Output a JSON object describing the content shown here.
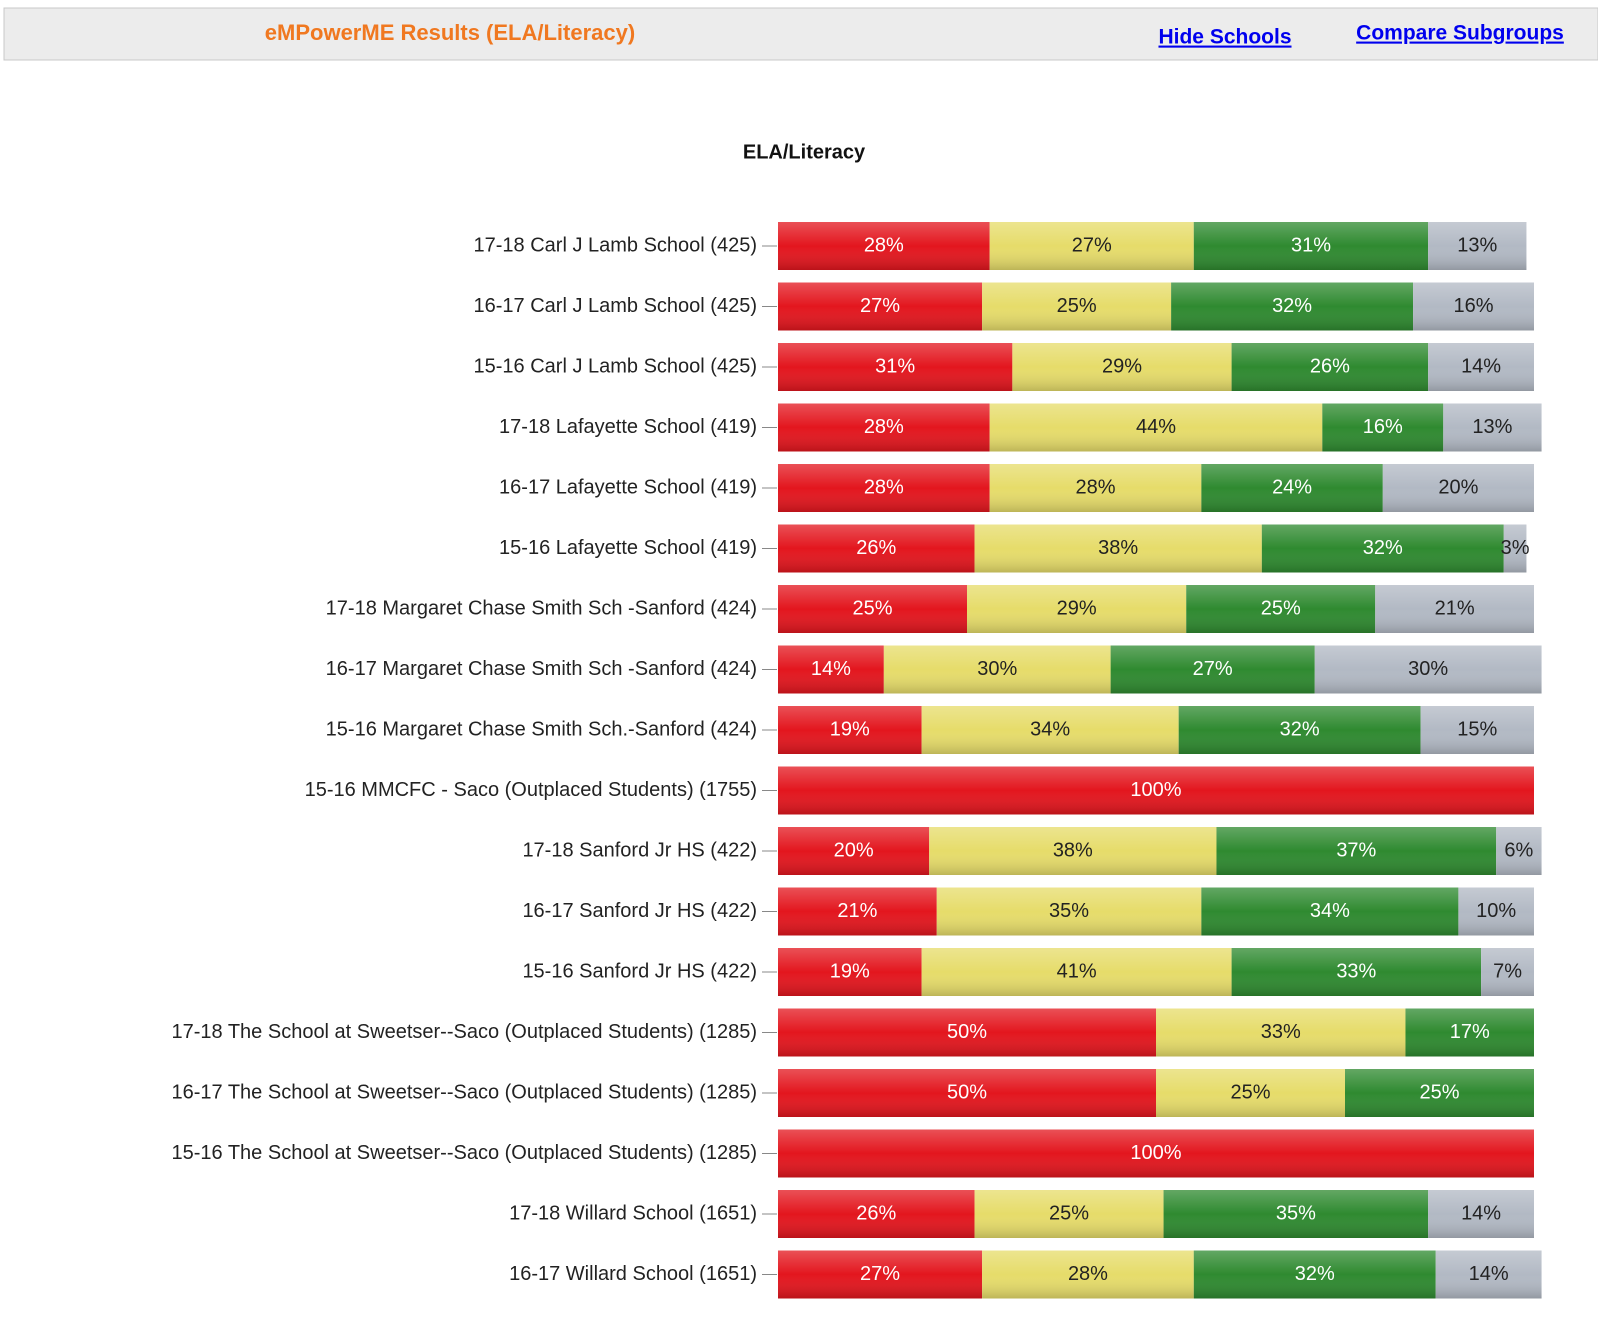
{
  "header": {
    "title": "eMPowerME Results (ELA/Literacy)",
    "links": [
      "Hide Schools",
      "Compare Subgroups"
    ]
  },
  "chart_data": {
    "type": "stacked_bar_horizontal",
    "title": "ELA/Literacy",
    "categories": [
      "17-18 Carl J Lamb School (425)",
      "16-17 Carl J Lamb School (425)",
      "15-16 Carl J Lamb School (425)",
      "17-18 Lafayette School (419)",
      "16-17 Lafayette School (419)",
      "15-16 Lafayette School (419)",
      "17-18 Margaret Chase Smith Sch -Sanford (424)",
      "16-17 Margaret Chase Smith Sch -Sanford (424)",
      "15-16 Margaret Chase Smith Sch.-Sanford (424)",
      "15-16 MMCFC - Saco (Outplaced Students) (1755)",
      "17-18 Sanford Jr HS (422)",
      "16-17 Sanford Jr HS (422)",
      "15-16 Sanford Jr HS (422)",
      "17-18 The School at Sweetser--Saco (Outplaced Students) (1285)",
      "16-17 The School at Sweetser--Saco (Outplaced Students) (1285)",
      "15-16 The School at Sweetser--Saco (Outplaced Students) (1285)",
      "17-18 Willard School (1651)",
      "16-17 Willard School (1651)"
    ],
    "xlim": [
      0,
      100
    ],
    "series": [
      {
        "color": "#e3161e",
        "text_color": "#ffffff",
        "values": [
          28,
          27,
          31,
          28,
          28,
          26,
          25,
          14,
          19,
          100,
          20,
          21,
          19,
          50,
          50,
          100,
          26,
          27
        ],
        "value_labels": [
          "28%",
          "27%",
          "31%",
          "28%",
          "28%",
          "26%",
          "25%",
          "14%",
          "19%",
          "100%",
          "20%",
          "21%",
          "19%",
          "50%",
          "50%",
          "100%",
          "26%",
          "27%"
        ]
      },
      {
        "color": "#e6dc6a",
        "text_color": "#222222",
        "values": [
          27,
          25,
          29,
          44,
          28,
          38,
          29,
          30,
          34,
          null,
          38,
          35,
          41,
          33,
          25,
          null,
          25,
          28
        ],
        "value_labels": [
          "27%",
          "25%",
          "29%",
          "44%",
          "28%",
          "38%",
          "29%",
          "30%",
          "34%",
          null,
          "38%",
          "35%",
          "41%",
          "33%",
          "25%",
          null,
          "25%",
          "28%"
        ]
      },
      {
        "color": "#2f8a30",
        "text_color": "#ffffff",
        "values": [
          31,
          32,
          26,
          16,
          24,
          32,
          25,
          27,
          32,
          null,
          37,
          34,
          33,
          17,
          25,
          null,
          35,
          32
        ],
        "value_labels": [
          "31%",
          "32%",
          "26%",
          "16%",
          "24%",
          "32%",
          "25%",
          "27%",
          "32%",
          null,
          "37%",
          "34%",
          "33%",
          "17%",
          "25%",
          null,
          "35%",
          "32%"
        ]
      },
      {
        "color": "#b2b9c4",
        "text_color": "#222222",
        "values": [
          13,
          16,
          14,
          13,
          20,
          3,
          21,
          30,
          15,
          null,
          6,
          10,
          7,
          null,
          null,
          null,
          14,
          14
        ],
        "value_labels": [
          "13%",
          "16%",
          "14%",
          "13%",
          "20%",
          "3%",
          "21%",
          "30%",
          "15%",
          null,
          "6%",
          "10%",
          "7%",
          null,
          null,
          null,
          "14%",
          "14%"
        ]
      }
    ]
  }
}
